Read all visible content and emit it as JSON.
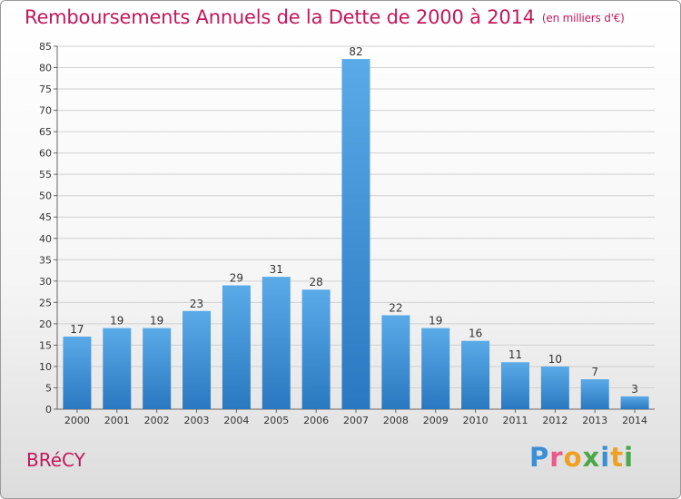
{
  "header": {
    "title": "Remboursements Annuels de la Dette de 2000 à 2014",
    "subtitle": "(en milliers d'€)"
  },
  "footer": {
    "commune": "BRéCY",
    "logo_letters": [
      "P",
      "r",
      "o",
      "x",
      "i",
      "t",
      "i"
    ],
    "logo_colors": [
      "#3b8fd4",
      "#e85a8c",
      "#f0a020",
      "#4aa84a",
      "#3b8fd4",
      "#f0a020",
      "#4aa84a"
    ]
  },
  "chart_data": {
    "type": "bar",
    "title": "Remboursements Annuels de la Dette de 2000 à 2014",
    "subtitle": "(en milliers d'€)",
    "xlabel": "",
    "ylabel": "",
    "categories": [
      "2000",
      "2001",
      "2002",
      "2003",
      "2004",
      "2005",
      "2006",
      "2007",
      "2008",
      "2009",
      "2010",
      "2011",
      "2012",
      "2013",
      "2014"
    ],
    "values": [
      17,
      19,
      19,
      23,
      29,
      31,
      28,
      82,
      22,
      19,
      16,
      11,
      10,
      7,
      3
    ],
    "ylim": [
      0,
      85
    ],
    "yticks": [
      0,
      5,
      10,
      15,
      20,
      25,
      30,
      35,
      40,
      45,
      50,
      55,
      60,
      65,
      70,
      75,
      80,
      85
    ],
    "grid": true,
    "bar_color_light": "#5aaae8",
    "bar_color_dark": "#2a78c0"
  }
}
